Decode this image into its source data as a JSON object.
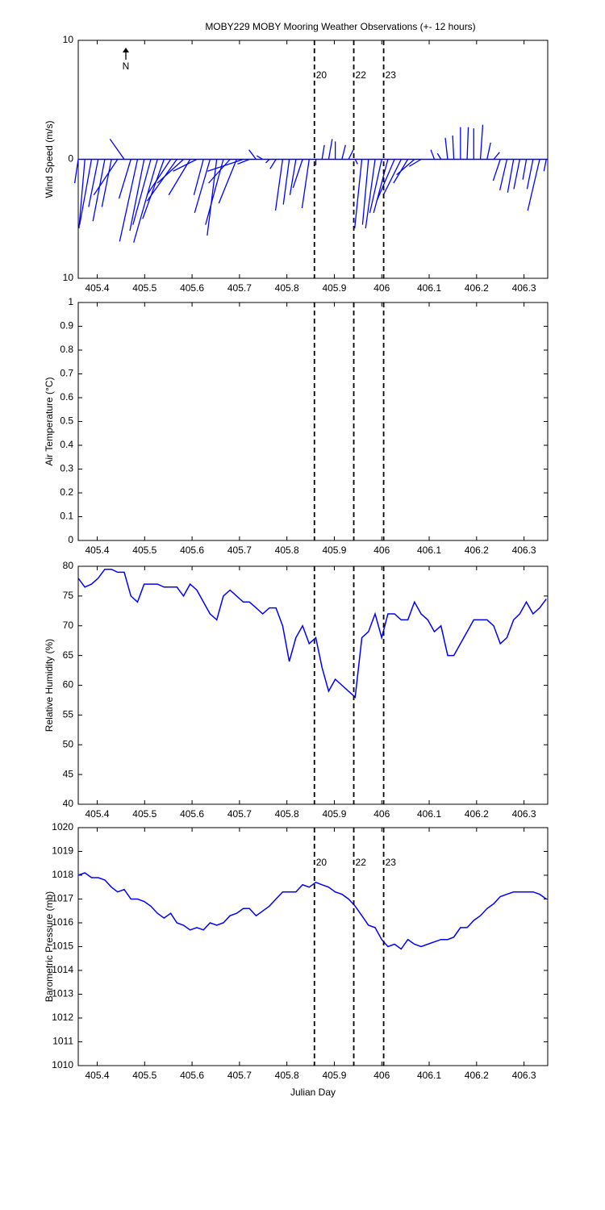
{
  "events": {
    "x": [
      405.858,
      405.941,
      406.004
    ],
    "labels": [
      "20",
      "22",
      "23"
    ],
    "color": "#b22222"
  },
  "chart_data": [
    {
      "type": "stick",
      "title": "MOBY229 MOBY Mooring Weather Observations (+- 12 hours)",
      "y_label": "Wind Speed (m/s)",
      "north_label": "N",
      "show_event_labels": true,
      "color": "#0000ff",
      "xlim": [
        405.36,
        406.35
      ],
      "xticks": [
        405.4,
        405.5,
        405.6,
        405.7,
        405.8,
        405.9,
        406,
        406.1,
        406.2,
        406.3
      ],
      "ylim": [
        -10,
        10
      ],
      "yticks": [
        {
          "value": -10,
          "label": "10"
        },
        0,
        10
      ],
      "x": [
        405.36,
        405.374,
        405.388,
        405.402,
        405.416,
        405.43,
        405.443,
        405.457,
        405.471,
        405.485,
        405.499,
        405.513,
        405.527,
        405.541,
        405.555,
        405.568,
        405.582,
        405.596,
        405.61,
        405.624,
        405.638,
        405.652,
        405.666,
        405.68,
        405.694,
        405.708,
        405.721,
        405.735,
        405.749,
        405.763,
        405.777,
        405.791,
        405.805,
        405.819,
        405.833,
        405.847,
        405.861,
        405.874,
        405.888,
        405.902,
        405.916,
        405.93,
        405.944,
        405.958,
        405.972,
        405.986,
        406.0,
        406.013,
        406.027,
        406.041,
        406.055,
        406.069,
        406.083,
        406.097,
        406.111,
        406.125,
        406.139,
        406.152,
        406.166,
        406.18,
        406.194,
        406.208,
        406.222,
        406.236,
        406.25,
        406.264,
        406.278,
        406.291,
        406.305,
        406.319,
        406.333,
        406.347
      ],
      "u": [
        -0.3,
        -0.5,
        -1,
        -0.8,
        -1,
        -0.8,
        -2,
        -1.2,
        -1,
        -1.5,
        -1.2,
        -1.5,
        -2,
        -1.8,
        -2,
        -2.5,
        -2.2,
        -1.8,
        -2,
        -0.8,
        -1.3,
        -0.8,
        -1.5,
        -1.8,
        -1.5,
        -3,
        -1,
        -0.6,
        -0.5,
        -0.3,
        -0.5,
        -0.6,
        -0.5,
        -0.5,
        -0.8,
        -0.6,
        0,
        0.2,
        0.3,
        0,
        0.3,
        0.4,
        0.2,
        -0.6,
        -0.5,
        -0.8,
        -1,
        -1.2,
        -1.5,
        -1.5,
        -1.2,
        -1.5,
        -1,
        0,
        -0.3,
        -0.3,
        -0.2,
        -0.1,
        0,
        0.1,
        0,
        0.2,
        0.3,
        0.5,
        -0.6,
        -0.6,
        -0.5,
        -0.5,
        -0.3,
        -0.5,
        -1,
        -0.2
      ],
      "v": [
        -2,
        -5.8,
        -5.5,
        -4,
        -5.2,
        -4,
        -3,
        1.7,
        -3.3,
        -6.9,
        -6,
        -5.5,
        -7,
        -5,
        -3,
        -3.5,
        -2,
        -3,
        -1,
        -3,
        -4.5,
        -6.4,
        -5.5,
        -2,
        -3.7,
        -1,
        -0.4,
        0.8,
        0.3,
        -0.3,
        -0.8,
        -4.3,
        -3.8,
        -3,
        -2.4,
        -4.1,
        -0.5,
        1.2,
        1.7,
        1.5,
        1.2,
        0.8,
        -0.4,
        -5.8,
        -5.5,
        -5.8,
        -4.5,
        -4.5,
        -3.5,
        -3,
        -2,
        -1.3,
        -0.6,
        0,
        0.8,
        0.5,
        1.8,
        2,
        2.7,
        2.7,
        2.6,
        2.9,
        1.4,
        0.6,
        -1.8,
        -2.6,
        -2.8,
        -2.5,
        -1.7,
        -2.5,
        -4.3,
        -1
      ]
    },
    {
      "type": "line",
      "y_label": "Air Temperature (°C)",
      "show_event_labels": false,
      "xlim": [
        405.36,
        406.35
      ],
      "xticks": [
        405.4,
        405.5,
        405.6,
        405.7,
        405.8,
        405.9,
        406,
        406.1,
        406.2,
        406.3
      ],
      "ylim": [
        0,
        1
      ],
      "yticks": [
        0,
        0.1,
        0.2,
        0.3,
        0.4,
        0.5,
        0.6,
        0.7,
        0.8,
        0.9,
        1
      ]
    },
    {
      "type": "line",
      "y_label": "Relative Humidity (%)",
      "show_event_labels": false,
      "color": "#0000ff",
      "xlim": [
        405.36,
        406.35
      ],
      "xticks": [
        405.4,
        405.5,
        405.6,
        405.7,
        405.8,
        405.9,
        406,
        406.1,
        406.2,
        406.3
      ],
      "ylim": [
        40,
        80
      ],
      "yticks": [
        40,
        45,
        50,
        55,
        60,
        65,
        70,
        75,
        80
      ],
      "x": [
        405.36,
        405.374,
        405.388,
        405.402,
        405.416,
        405.43,
        405.443,
        405.457,
        405.471,
        405.485,
        405.499,
        405.513,
        405.527,
        405.541,
        405.555,
        405.568,
        405.582,
        405.596,
        405.61,
        405.624,
        405.638,
        405.652,
        405.666,
        405.68,
        405.694,
        405.708,
        405.721,
        405.735,
        405.749,
        405.763,
        405.777,
        405.791,
        405.805,
        405.819,
        405.833,
        405.847,
        405.861,
        405.874,
        405.888,
        405.902,
        405.916,
        405.93,
        405.944,
        405.958,
        405.972,
        405.986,
        406.0,
        406.013,
        406.027,
        406.041,
        406.055,
        406.069,
        406.083,
        406.097,
        406.111,
        406.125,
        406.139,
        406.152,
        406.166,
        406.18,
        406.194,
        406.208,
        406.222,
        406.236,
        406.25,
        406.264,
        406.278,
        406.291,
        406.305,
        406.319,
        406.333,
        406.347
      ],
      "values": [
        78,
        76.5,
        77,
        78,
        79.5,
        79.5,
        79,
        79,
        75,
        74,
        77,
        77,
        77,
        76.5,
        76.5,
        76.5,
        75,
        77,
        76,
        74,
        72,
        71,
        75,
        76,
        75,
        74,
        74,
        73,
        72,
        73,
        73,
        70,
        64,
        68,
        70,
        67,
        68,
        63,
        59,
        61,
        60,
        59,
        58,
        68,
        69,
        72,
        68,
        72,
        72,
        71,
        71,
        74,
        72,
        71,
        69,
        70,
        65,
        65,
        67,
        69,
        71,
        71,
        71,
        70,
        67,
        68,
        71,
        72,
        74,
        72,
        73,
        74.5
      ]
    },
    {
      "type": "line",
      "y_label": "Barometric Pressure (mb)",
      "x_label": "Julian Day",
      "show_event_labels": true,
      "color": "#0000ff",
      "xlim": [
        405.36,
        406.35
      ],
      "xticks": [
        405.4,
        405.5,
        405.6,
        405.7,
        405.8,
        405.9,
        406,
        406.1,
        406.2,
        406.3
      ],
      "ylim": [
        1010,
        1020
      ],
      "yticks": [
        1010,
        1011,
        1012,
        1013,
        1014,
        1015,
        1016,
        1017,
        1018,
        1019,
        1020
      ],
      "x": [
        405.36,
        405.374,
        405.388,
        405.402,
        405.416,
        405.43,
        405.443,
        405.457,
        405.471,
        405.485,
        405.499,
        405.513,
        405.527,
        405.541,
        405.555,
        405.568,
        405.582,
        405.596,
        405.61,
        405.624,
        405.638,
        405.652,
        405.666,
        405.68,
        405.694,
        405.708,
        405.721,
        405.735,
        405.749,
        405.763,
        405.777,
        405.791,
        405.805,
        405.819,
        405.833,
        405.847,
        405.861,
        405.874,
        405.888,
        405.902,
        405.916,
        405.93,
        405.944,
        405.958,
        405.972,
        405.986,
        406.0,
        406.013,
        406.027,
        406.041,
        406.055,
        406.069,
        406.083,
        406.097,
        406.111,
        406.125,
        406.139,
        406.152,
        406.166,
        406.18,
        406.194,
        406.208,
        406.222,
        406.236,
        406.25,
        406.264,
        406.278,
        406.291,
        406.305,
        406.319,
        406.333,
        406.347
      ],
      "values": [
        1018,
        1018.1,
        1017.9,
        1017.9,
        1017.8,
        1017.5,
        1017.3,
        1017.4,
        1017,
        1017,
        1016.9,
        1016.7,
        1016.4,
        1016.2,
        1016.4,
        1016,
        1015.9,
        1015.7,
        1015.8,
        1015.7,
        1016,
        1015.9,
        1016,
        1016.3,
        1016.4,
        1016.6,
        1016.6,
        1016.3,
        1016.5,
        1016.7,
        1017,
        1017.3,
        1017.3,
        1017.3,
        1017.6,
        1017.5,
        1017.7,
        1017.6,
        1017.5,
        1017.3,
        1017.2,
        1017,
        1016.7,
        1016.3,
        1015.9,
        1015.8,
        1015.3,
        1015,
        1015.1,
        1014.9,
        1015.3,
        1015.1,
        1015,
        1015.1,
        1015.2,
        1015.3,
        1015.3,
        1015.4,
        1015.8,
        1015.8,
        1016.1,
        1016.3,
        1016.6,
        1016.8,
        1017.1,
        1017.2,
        1017.3,
        1017.3,
        1017.3,
        1017.3,
        1017.2,
        1017
      ]
    }
  ]
}
